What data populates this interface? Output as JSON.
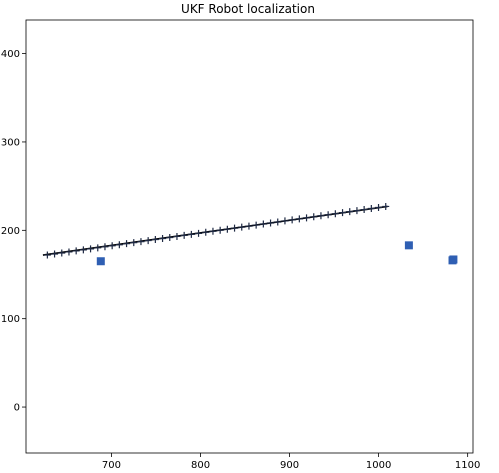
{
  "chart_data": {
    "type": "scatter",
    "title": "UKF Robot localization",
    "xlabel": "",
    "ylabel": "",
    "xlim": [
      604,
      1106
    ],
    "ylim": [
      -52,
      438
    ],
    "xticks": [
      700,
      800,
      900,
      1000,
      1100
    ],
    "yticks": [
      0,
      100,
      200,
      300,
      400
    ],
    "grid": false,
    "series": [
      {
        "style": "line",
        "color": "#000000",
        "x": [
          623,
          1010
        ],
        "y": [
          172,
          227
        ]
      },
      {
        "style": "plus-markers",
        "color": "#1f2a44",
        "x_start": 628,
        "x_end": 1008,
        "count": 48,
        "y_start": 172,
        "y_end": 227
      },
      {
        "style": "square-markers",
        "color": "#2f5fb3",
        "points": [
          {
            "x": 688,
            "y": 165
          },
          {
            "x": 1034,
            "y": 183
          },
          {
            "x": 1083,
            "y": 166
          },
          {
            "x": 1084,
            "y": 167
          }
        ]
      }
    ]
  }
}
